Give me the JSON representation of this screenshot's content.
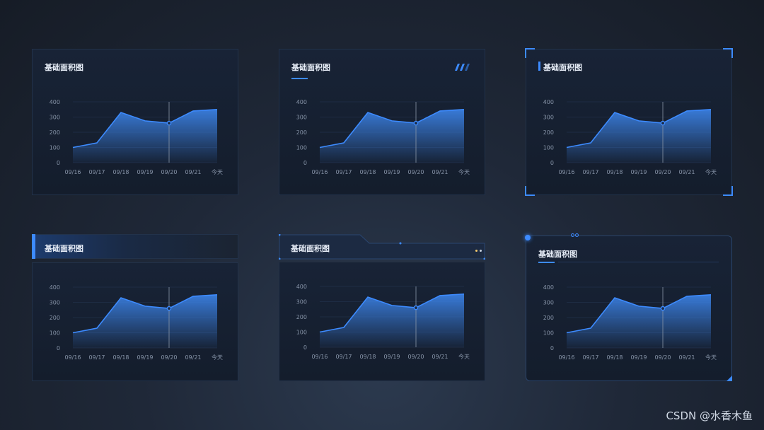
{
  "watermark": "CSDN @水香木鱼",
  "panels": [
    {
      "title": "基础面积图"
    },
    {
      "title": "基础面积图"
    },
    {
      "title": "基础面积图"
    },
    {
      "title": "基础面积图"
    },
    {
      "title": "基础面积图"
    },
    {
      "title": "基础面积图"
    }
  ],
  "colors": {
    "accent": "#3d8bff",
    "line": "#3d8bff",
    "area_top": "#3a7fe0",
    "background": "#182336"
  },
  "chart_data": [
    {
      "type": "area",
      "x": [
        "09/16",
        "09/17",
        "09/18",
        "09/19",
        "09/20",
        "09/21",
        "今天"
      ],
      "values": [
        100,
        130,
        330,
        275,
        260,
        340,
        350
      ],
      "ylim": [
        0,
        400
      ],
      "yticks": [
        0,
        100,
        200,
        300,
        400
      ],
      "highlight_index": 4,
      "grid": true
    },
    {
      "type": "area",
      "x": [
        "09/16",
        "09/17",
        "09/18",
        "09/19",
        "09/20",
        "09/21",
        "今天"
      ],
      "values": [
        100,
        130,
        330,
        275,
        260,
        340,
        350
      ],
      "ylim": [
        0,
        400
      ],
      "yticks": [
        0,
        100,
        200,
        300,
        400
      ],
      "highlight_index": 4,
      "grid": true
    },
    {
      "type": "area",
      "x": [
        "09/16",
        "09/17",
        "09/18",
        "09/19",
        "09/20",
        "09/21",
        "今天"
      ],
      "values": [
        100,
        130,
        330,
        275,
        260,
        340,
        350
      ],
      "ylim": [
        0,
        400
      ],
      "yticks": [
        0,
        100,
        200,
        300,
        400
      ],
      "highlight_index": 4,
      "grid": true
    },
    {
      "type": "area",
      "x": [
        "09/16",
        "09/17",
        "09/18",
        "09/19",
        "09/20",
        "09/21",
        "今天"
      ],
      "values": [
        100,
        130,
        330,
        275,
        260,
        340,
        350
      ],
      "ylim": [
        0,
        400
      ],
      "yticks": [
        0,
        100,
        200,
        300,
        400
      ],
      "highlight_index": 4,
      "grid": true
    },
    {
      "type": "area",
      "x": [
        "09/16",
        "09/17",
        "09/18",
        "09/19",
        "09/20",
        "09/21",
        "今天"
      ],
      "values": [
        100,
        130,
        330,
        275,
        260,
        340,
        350
      ],
      "ylim": [
        0,
        400
      ],
      "yticks": [
        0,
        100,
        200,
        300,
        400
      ],
      "highlight_index": 4,
      "grid": true
    },
    {
      "type": "area",
      "x": [
        "09/16",
        "09/17",
        "09/18",
        "09/19",
        "09/20",
        "09/21",
        "今天"
      ],
      "values": [
        100,
        130,
        330,
        275,
        260,
        340,
        350
      ],
      "ylim": [
        0,
        400
      ],
      "yticks": [
        0,
        100,
        200,
        300,
        400
      ],
      "highlight_index": 4,
      "grid": true
    }
  ]
}
